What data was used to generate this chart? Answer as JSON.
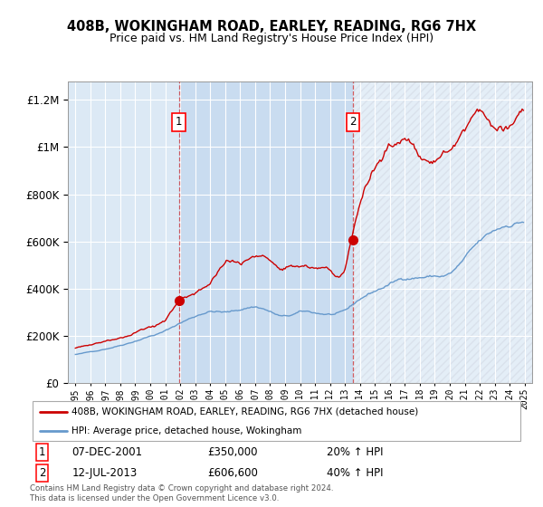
{
  "title": "408B, WOKINGHAM ROAD, EARLEY, READING, RG6 7HX",
  "subtitle": "Price paid vs. HM Land Registry's House Price Index (HPI)",
  "legend_line1": "408B, WOKINGHAM ROAD, EARLEY, READING, RG6 7HX (detached house)",
  "legend_line2": "HPI: Average price, detached house, Wokingham",
  "purchase1_date": "07-DEC-2001",
  "purchase1_price": 350000,
  "purchase1_pct": "20% ↑ HPI",
  "purchase1_year": 2001.92,
  "purchase2_date": "12-JUL-2013",
  "purchase2_price": 606600,
  "purchase2_pct": "40% ↑ HPI",
  "purchase2_year": 2013.53,
  "footnote": "Contains HM Land Registry data © Crown copyright and database right 2024.\nThis data is licensed under the Open Government Licence v3.0.",
  "bg_color": "#dce9f5",
  "shade_color": "#c5d9ef",
  "red_color": "#cc0000",
  "blue_color": "#6699cc",
  "ylim": [
    0,
    1280000
  ],
  "xlim_start": 1994.5,
  "xlim_end": 2025.5
}
